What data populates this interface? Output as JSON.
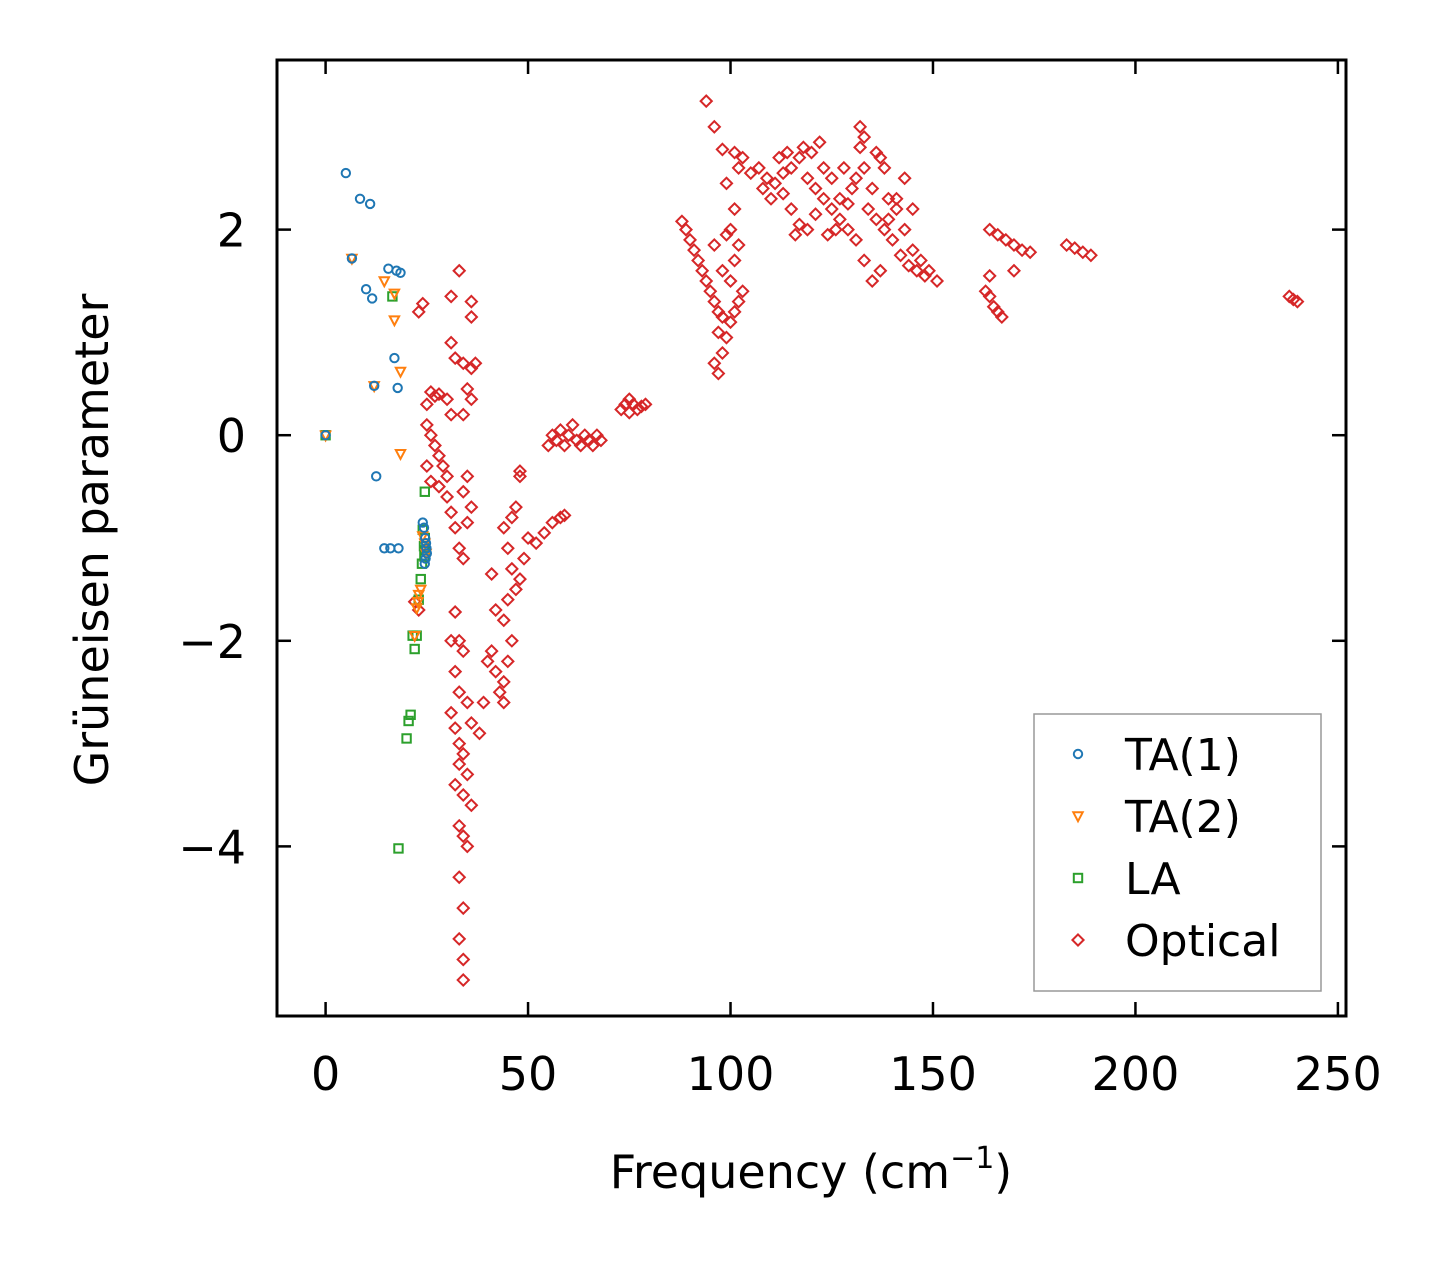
{
  "chart_data": {
    "type": "scatter",
    "title": "",
    "xlabel": "Frequency (cm",
    "xlabel_sup": "−1",
    "xlabel_close": ")",
    "ylabel": "Grüneisen parameter",
    "xlim": [
      -12,
      252
    ],
    "ylim": [
      -5.65,
      3.65
    ],
    "xticks": [
      0,
      50,
      100,
      150,
      200,
      250
    ],
    "xtick_labels": [
      "0",
      "50",
      "100",
      "150",
      "200",
      "250"
    ],
    "yticks": [
      -4,
      -2,
      0,
      2
    ],
    "ytick_labels": [
      "−4",
      "−2",
      "0",
      "2"
    ],
    "grid": false,
    "legend_position": "bottom-right",
    "series": [
      {
        "name": "TA(1)",
        "marker": "circle",
        "color": "#1f77b4",
        "points": [
          [
            0,
            0
          ],
          [
            5,
            2.55
          ],
          [
            8.5,
            2.3
          ],
          [
            11,
            2.25
          ],
          [
            6.5,
            1.72
          ],
          [
            15.5,
            1.62
          ],
          [
            17.5,
            1.6
          ],
          [
            18.5,
            1.58
          ],
          [
            10,
            1.42
          ],
          [
            11.5,
            1.33
          ],
          [
            17,
            0.75
          ],
          [
            12,
            0.48
          ],
          [
            17.8,
            0.46
          ],
          [
            12.5,
            -0.4
          ],
          [
            14.5,
            -1.1
          ],
          [
            16,
            -1.1
          ],
          [
            18,
            -1.1
          ],
          [
            24,
            -0.85
          ],
          [
            24.3,
            -0.9
          ],
          [
            24.6,
            -1.0
          ],
          [
            24.8,
            -1.05
          ],
          [
            24.9,
            -1.1
          ],
          [
            25,
            -1.15
          ],
          [
            24.7,
            -1.2
          ],
          [
            24.5,
            -1.25
          ]
        ]
      },
      {
        "name": "TA(2)",
        "marker": "triangle-down",
        "color": "#ff7f0e",
        "points": [
          [
            0,
            0
          ],
          [
            6.5,
            1.72
          ],
          [
            14.5,
            1.5
          ],
          [
            17,
            1.38
          ],
          [
            17,
            1.12
          ],
          [
            18.5,
            0.62
          ],
          [
            12,
            0.48
          ],
          [
            18.5,
            -0.18
          ],
          [
            24,
            -0.98
          ],
          [
            24.5,
            -1.05
          ],
          [
            24.8,
            -1.15
          ],
          [
            23.5,
            -1.5
          ],
          [
            23,
            -1.55
          ],
          [
            22.8,
            -1.62
          ],
          [
            22.5,
            -1.68
          ],
          [
            22,
            -1.95
          ]
        ]
      },
      {
        "name": "LA",
        "marker": "square",
        "color": "#2ca02c",
        "points": [
          [
            0,
            0
          ],
          [
            16.5,
            1.35
          ],
          [
            24.5,
            -0.55
          ],
          [
            24,
            -0.92
          ],
          [
            24.5,
            -1.0
          ],
          [
            24.3,
            -1.08
          ],
          [
            24.6,
            -1.12
          ],
          [
            24.4,
            -1.18
          ],
          [
            23.8,
            -1.25
          ],
          [
            23.5,
            -1.4
          ],
          [
            23,
            -1.6
          ],
          [
            22.5,
            -1.95
          ],
          [
            21.5,
            -1.95
          ],
          [
            22,
            -2.08
          ],
          [
            21,
            -2.72
          ],
          [
            20.5,
            -2.78
          ],
          [
            20,
            -2.95
          ],
          [
            18,
            -4.02
          ]
        ]
      },
      {
        "name": "Optical",
        "marker": "diamond",
        "color": "#d62728",
        "points": [
          [
            23,
            1.2
          ],
          [
            24,
            1.28
          ],
          [
            31,
            1.35
          ],
          [
            33,
            1.6
          ],
          [
            36,
            1.3
          ],
          [
            36,
            1.15
          ],
          [
            31,
            0.9
          ],
          [
            32,
            0.75
          ],
          [
            34,
            0.7
          ],
          [
            36,
            0.65
          ],
          [
            37,
            0.7
          ],
          [
            26,
            0.42
          ],
          [
            27,
            0.38
          ],
          [
            28,
            0.4
          ],
          [
            25,
            0.3
          ],
          [
            30,
            0.35
          ],
          [
            31,
            0.2
          ],
          [
            35,
            0.45
          ],
          [
            36,
            0.35
          ],
          [
            34,
            0.2
          ],
          [
            25,
            0.1
          ],
          [
            26,
            0.0
          ],
          [
            27,
            -0.1
          ],
          [
            28,
            -0.2
          ],
          [
            29,
            -0.3
          ],
          [
            30,
            -0.4
          ],
          [
            25,
            -0.3
          ],
          [
            26,
            -0.45
          ],
          [
            28,
            -0.5
          ],
          [
            30,
            -0.6
          ],
          [
            31,
            -0.75
          ],
          [
            32,
            -0.9
          ],
          [
            34,
            -0.55
          ],
          [
            35,
            -0.4
          ],
          [
            36,
            -0.7
          ],
          [
            35,
            -0.85
          ],
          [
            33,
            -1.1
          ],
          [
            34,
            -1.2
          ],
          [
            22,
            -1.62
          ],
          [
            23,
            -1.7
          ],
          [
            32,
            -1.72
          ],
          [
            31,
            -2.0
          ],
          [
            33,
            -2.0
          ],
          [
            34,
            -2.1
          ],
          [
            32,
            -2.3
          ],
          [
            33,
            -2.5
          ],
          [
            35,
            -2.6
          ],
          [
            36,
            -2.8
          ],
          [
            38,
            -2.9
          ],
          [
            39,
            -2.6
          ],
          [
            31,
            -2.7
          ],
          [
            32,
            -2.85
          ],
          [
            33,
            -3.0
          ],
          [
            34,
            -3.1
          ],
          [
            35,
            -3.3
          ],
          [
            33,
            -3.2
          ],
          [
            32,
            -3.4
          ],
          [
            34,
            -3.5
          ],
          [
            36,
            -3.6
          ],
          [
            33,
            -3.8
          ],
          [
            34,
            -3.9
          ],
          [
            35,
            -4.0
          ],
          [
            33,
            -4.3
          ],
          [
            34,
            -4.6
          ],
          [
            33,
            -4.9
          ],
          [
            34,
            -5.1
          ],
          [
            34,
            -5.3
          ],
          [
            40,
            -2.2
          ],
          [
            41,
            -2.1
          ],
          [
            42,
            -2.3
          ],
          [
            42,
            -1.7
          ],
          [
            41,
            -1.35
          ],
          [
            43,
            -2.5
          ],
          [
            44,
            -2.4
          ],
          [
            44,
            -2.6
          ],
          [
            45,
            -2.2
          ],
          [
            46,
            -2.0
          ],
          [
            44,
            -1.8
          ],
          [
            45,
            -1.6
          ],
          [
            47,
            -1.5
          ],
          [
            46,
            -1.3
          ],
          [
            48,
            -1.4
          ],
          [
            49,
            -1.2
          ],
          [
            50,
            -1.0
          ],
          [
            52,
            -1.05
          ],
          [
            54,
            -0.95
          ],
          [
            56,
            -0.85
          ],
          [
            58,
            -0.8
          ],
          [
            59,
            -0.78
          ],
          [
            44,
            -0.9
          ],
          [
            46,
            -0.8
          ],
          [
            47,
            -0.7
          ],
          [
            45,
            -1.1
          ],
          [
            48,
            -0.35
          ],
          [
            48,
            -0.4
          ],
          [
            55,
            -0.1
          ],
          [
            56,
            0.0
          ],
          [
            57,
            -0.05
          ],
          [
            58,
            0.05
          ],
          [
            59,
            -0.1
          ],
          [
            60,
            0.0
          ],
          [
            61,
            0.1
          ],
          [
            62,
            -0.05
          ],
          [
            63,
            -0.1
          ],
          [
            64,
            0.0
          ],
          [
            65,
            -0.05
          ],
          [
            66,
            -0.1
          ],
          [
            67,
            0.0
          ],
          [
            68,
            -0.05
          ],
          [
            73,
            0.25
          ],
          [
            74,
            0.3
          ],
          [
            75,
            0.35
          ],
          [
            76,
            0.3
          ],
          [
            77,
            0.25
          ],
          [
            78,
            0.28
          ],
          [
            79,
            0.3
          ],
          [
            75,
            0.22
          ],
          [
            88,
            2.08
          ],
          [
            89,
            2.0
          ],
          [
            90,
            1.9
          ],
          [
            91,
            1.8
          ],
          [
            92,
            1.7
          ],
          [
            93,
            1.6
          ],
          [
            94,
            1.5
          ],
          [
            95,
            1.4
          ],
          [
            96,
            1.3
          ],
          [
            97,
            1.2
          ],
          [
            98,
            1.15
          ],
          [
            97,
            1.0
          ],
          [
            96,
            0.7
          ],
          [
            97,
            0.6
          ],
          [
            98,
            0.8
          ],
          [
            99,
            0.95
          ],
          [
            100,
            1.1
          ],
          [
            101,
            1.2
          ],
          [
            102,
            1.3
          ],
          [
            103,
            1.4
          ],
          [
            100,
            1.5
          ],
          [
            101,
            1.7
          ],
          [
            102,
            1.85
          ],
          [
            99,
            1.95
          ],
          [
            98,
            1.6
          ],
          [
            96,
            1.85
          ],
          [
            100,
            2.0
          ],
          [
            101,
            2.2
          ],
          [
            99,
            2.45
          ],
          [
            102,
            2.6
          ],
          [
            103,
            2.7
          ],
          [
            101,
            2.75
          ],
          [
            94,
            3.25
          ],
          [
            96,
            3.0
          ],
          [
            98,
            2.78
          ],
          [
            105,
            2.55
          ],
          [
            107,
            2.6
          ],
          [
            109,
            2.5
          ],
          [
            111,
            2.45
          ],
          [
            113,
            2.55
          ],
          [
            115,
            2.6
          ],
          [
            117,
            2.7
          ],
          [
            119,
            2.5
          ],
          [
            121,
            2.4
          ],
          [
            123,
            2.3
          ],
          [
            125,
            2.2
          ],
          [
            127,
            2.1
          ],
          [
            129,
            2.25
          ],
          [
            131,
            2.5
          ],
          [
            133,
            2.6
          ],
          [
            135,
            2.4
          ],
          [
            137,
            2.7
          ],
          [
            139,
            2.3
          ],
          [
            141,
            2.2
          ],
          [
            143,
            2.0
          ],
          [
            145,
            1.8
          ],
          [
            147,
            1.7
          ],
          [
            149,
            1.6
          ],
          [
            151,
            1.5
          ],
          [
            113,
            2.35
          ],
          [
            115,
            2.2
          ],
          [
            117,
            2.05
          ],
          [
            119,
            2.0
          ],
          [
            121,
            2.15
          ],
          [
            123,
            2.6
          ],
          [
            125,
            2.5
          ],
          [
            127,
            2.3
          ],
          [
            129,
            2.0
          ],
          [
            131,
            1.9
          ],
          [
            133,
            1.7
          ],
          [
            135,
            1.5
          ],
          [
            137,
            1.6
          ],
          [
            139,
            2.1
          ],
          [
            141,
            2.3
          ],
          [
            143,
            2.5
          ],
          [
            145,
            2.2
          ],
          [
            118,
            2.8
          ],
          [
            120,
            2.75
          ],
          [
            122,
            2.85
          ],
          [
            132,
            3.0
          ],
          [
            133,
            2.9
          ],
          [
            136,
            2.75
          ],
          [
            138,
            2.6
          ],
          [
            132,
            2.8
          ],
          [
            134,
            2.2
          ],
          [
            130,
            2.4
          ],
          [
            128,
            2.6
          ],
          [
            126,
            2.0
          ],
          [
            124,
            1.95
          ],
          [
            116,
            1.95
          ],
          [
            110,
            2.3
          ],
          [
            108,
            2.4
          ],
          [
            112,
            2.7
          ],
          [
            114,
            2.75
          ],
          [
            136,
            2.1
          ],
          [
            138,
            2.0
          ],
          [
            140,
            1.9
          ],
          [
            142,
            1.75
          ],
          [
            144,
            1.65
          ],
          [
            146,
            1.6
          ],
          [
            148,
            1.55
          ],
          [
            164,
            1.55
          ],
          [
            163,
            1.4
          ],
          [
            164,
            1.35
          ],
          [
            165,
            1.25
          ],
          [
            166,
            1.2
          ],
          [
            167,
            1.15
          ],
          [
            164,
            2.0
          ],
          [
            166,
            1.95
          ],
          [
            168,
            1.9
          ],
          [
            170,
            1.85
          ],
          [
            172,
            1.8
          ],
          [
            174,
            1.78
          ],
          [
            170,
            1.6
          ],
          [
            183,
            1.85
          ],
          [
            185,
            1.82
          ],
          [
            187,
            1.78
          ],
          [
            189,
            1.75
          ],
          [
            238,
            1.35
          ],
          [
            239,
            1.32
          ],
          [
            240,
            1.3
          ]
        ]
      }
    ]
  }
}
